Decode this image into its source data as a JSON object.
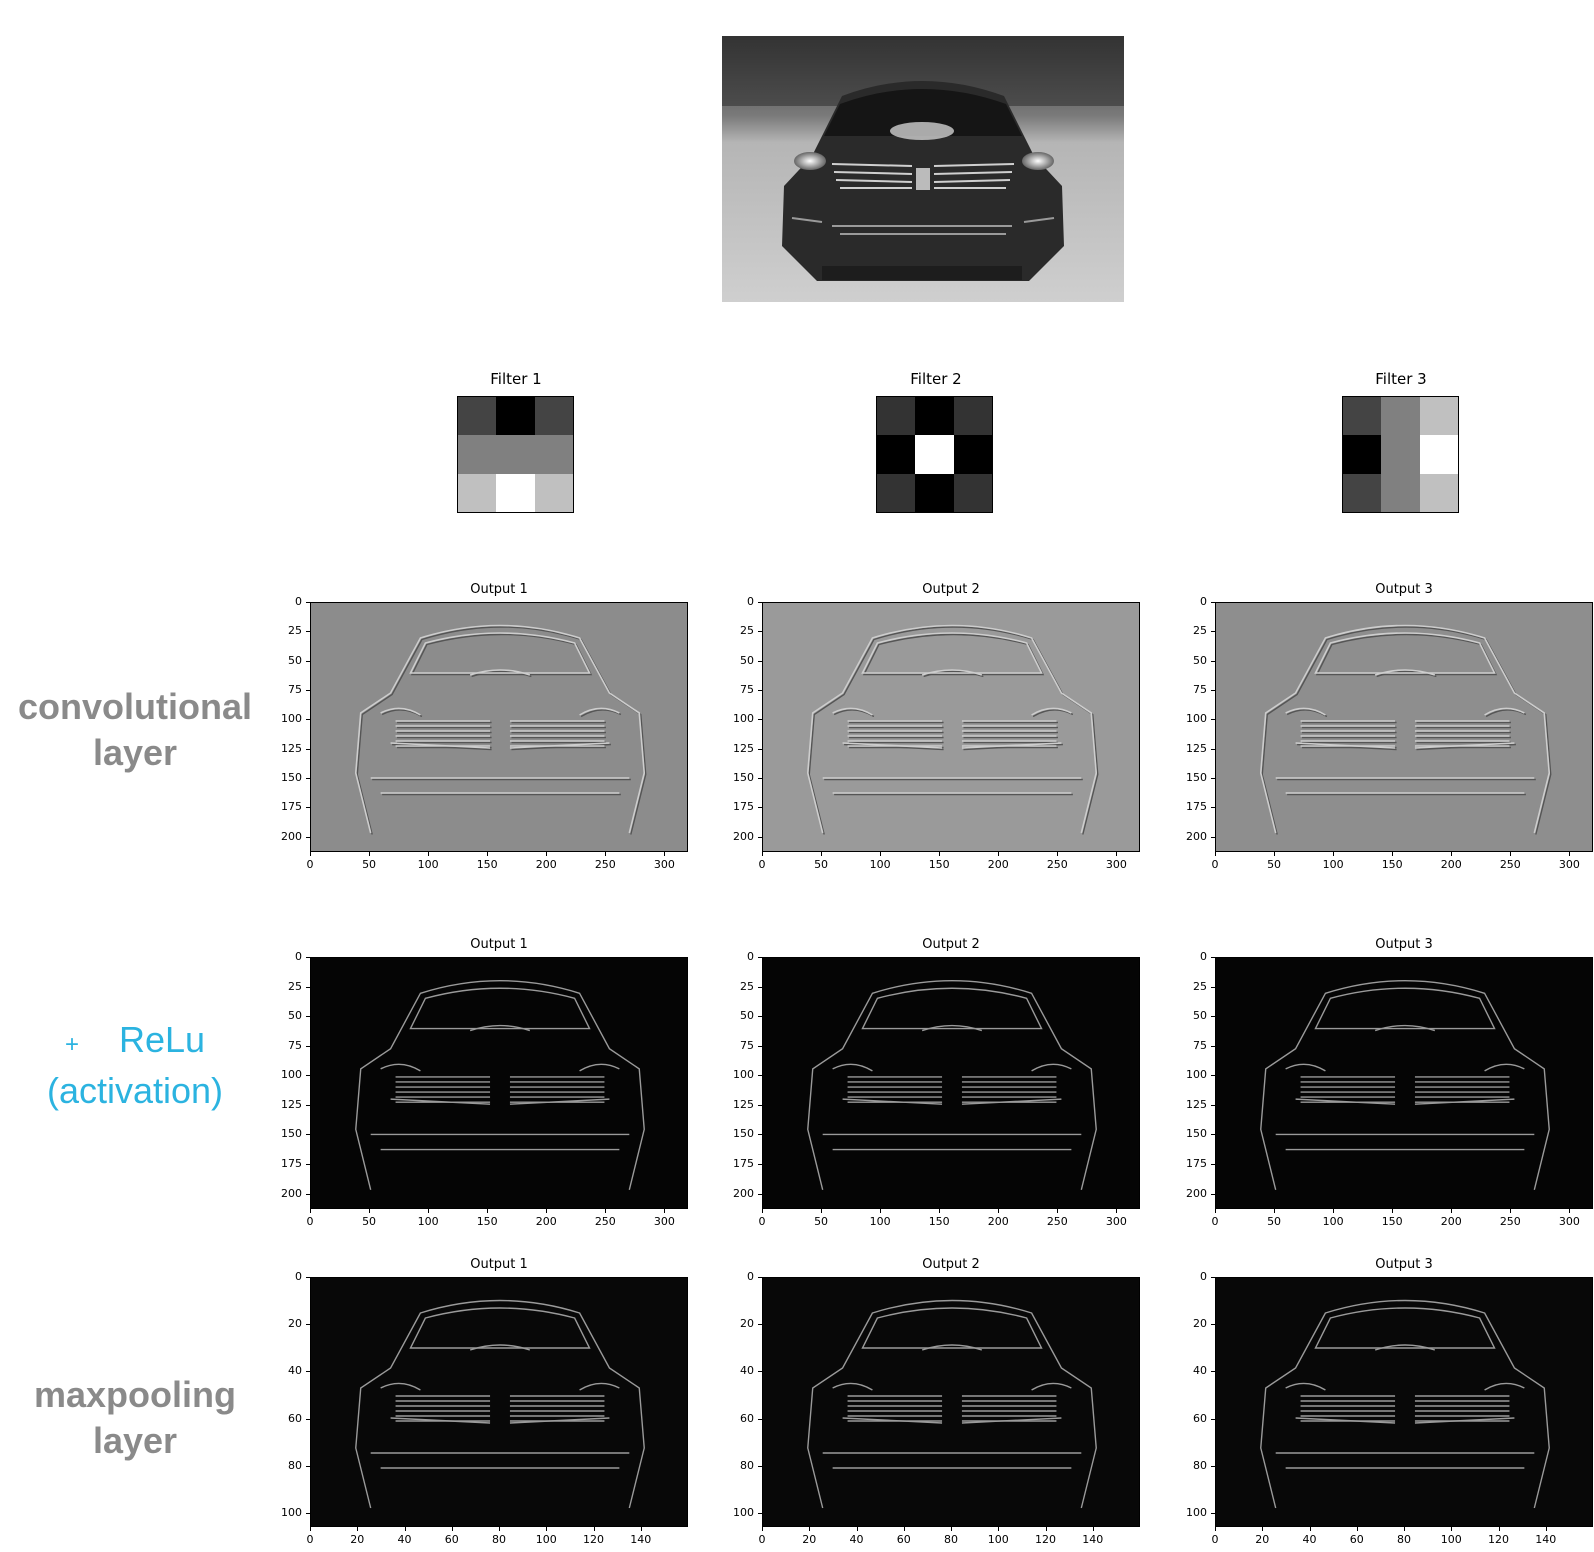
{
  "filters": [
    {
      "title": "Filter 1",
      "cells": [
        "#444444",
        "#000000",
        "#444444",
        "#808080",
        "#808080",
        "#808080",
        "#c0c0c0",
        "#ffffff",
        "#c0c0c0"
      ]
    },
    {
      "title": "Filter 2",
      "cells": [
        "#333333",
        "#000000",
        "#333333",
        "#000000",
        "#ffffff",
        "#000000",
        "#333333",
        "#000000",
        "#333333"
      ]
    },
    {
      "title": "Filter 3",
      "cells": [
        "#444444",
        "#808080",
        "#c0c0c0",
        "#000000",
        "#808080",
        "#ffffff",
        "#444444",
        "#808080",
        "#c0c0c0"
      ]
    }
  ],
  "labels": {
    "conv_line1": "convolutional",
    "conv_line2": "layer",
    "relu_plus": "+",
    "relu_line1": "ReLu",
    "relu_line2": "(activation)",
    "pool_line1": "maxpooling",
    "pool_line2": "layer"
  },
  "colors": {
    "side_label_gray": "#8a8a8a",
    "relu_blue": "#2bb3e0"
  },
  "panels": {
    "conv": [
      {
        "title": "Output 1",
        "bg": "#8c8c8c"
      },
      {
        "title": "Output 2",
        "bg": "#9a9a9a"
      },
      {
        "title": "Output 3",
        "bg": "#8e8e8e"
      }
    ],
    "relu": [
      {
        "title": "Output 1",
        "bg": "#050505"
      },
      {
        "title": "Output 2",
        "bg": "#050505"
      },
      {
        "title": "Output 3",
        "bg": "#050505"
      }
    ],
    "pool": [
      {
        "title": "Output 1",
        "bg": "#080808"
      },
      {
        "title": "Output 2",
        "bg": "#080808"
      },
      {
        "title": "Output 3",
        "bg": "#080808"
      }
    ]
  },
  "axes": {
    "full_x": [
      "0",
      "50",
      "100",
      "150",
      "200",
      "250",
      "300"
    ],
    "full_y": [
      "0",
      "25",
      "50",
      "75",
      "100",
      "125",
      "150",
      "175",
      "200"
    ],
    "pool_x": [
      "0",
      "20",
      "40",
      "60",
      "80",
      "100",
      "120",
      "140"
    ],
    "pool_y": [
      "0",
      "20",
      "40",
      "60",
      "80",
      "100"
    ]
  }
}
